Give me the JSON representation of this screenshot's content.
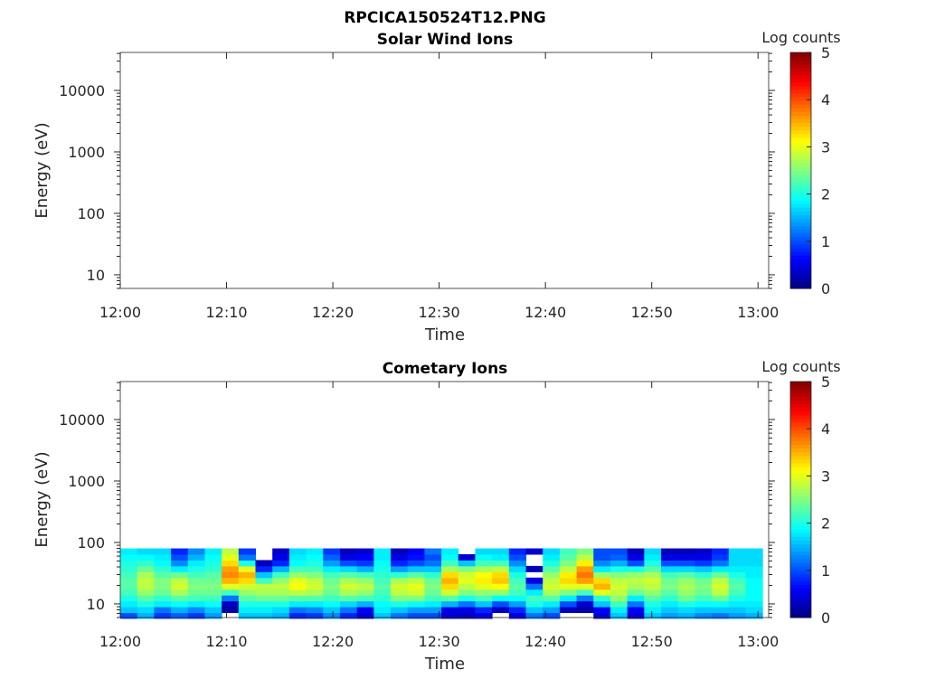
{
  "figure_title": "RPCICA150524T12.PNG",
  "chart_data": [
    {
      "type": "heatmap",
      "title": "Solar Wind Ions",
      "xlabel": "Time",
      "ylabel": "Energy (eV)",
      "yscale": "log",
      "ylim": [
        6,
        41500
      ],
      "xlim_minutes": [
        0,
        61
      ],
      "x_tick_labels": [
        "12:00",
        "12:10",
        "12:20",
        "12:30",
        "12:40",
        "12:50",
        "13:00"
      ],
      "y_ticks": [
        10,
        100,
        1000,
        10000
      ],
      "y_tick_labels": [
        "10",
        "100",
        "1000",
        "10000"
      ],
      "colorbar": {
        "label": "Log counts",
        "range": [
          0,
          5
        ],
        "ticks": [
          "0",
          "1",
          "2",
          "3",
          "4",
          "5"
        ],
        "colormap": "jet"
      },
      "data": []
    },
    {
      "type": "heatmap",
      "title": "Cometary Ions",
      "xlabel": "Time",
      "ylabel": "Energy (eV)",
      "yscale": "log",
      "ylim": [
        6,
        41500
      ],
      "xlim_minutes": [
        0,
        61
      ],
      "x_tick_labels": [
        "12:00",
        "12:10",
        "12:20",
        "12:30",
        "12:40",
        "12:50",
        "13:00"
      ],
      "y_ticks": [
        10,
        100,
        1000,
        10000
      ],
      "y_tick_labels": [
        "10",
        "100",
        "1000",
        "10000"
      ],
      "colorbar": {
        "label": "Log counts",
        "range": [
          0,
          5
        ],
        "ticks": [
          "0",
          "1",
          "2",
          "3",
          "4",
          "5"
        ],
        "colormap": "jet"
      },
      "energy_range_eV": [
        5.8,
        80
      ],
      "time_step_minutes": 1.59,
      "data": [
        [
          1.0,
          1.6,
          1.8,
          2.0,
          2.2,
          2.3,
          2.3,
          2.2,
          2.1,
          2.0,
          1.9,
          1.8
        ],
        [
          1.5,
          1.7,
          2.0,
          2.3,
          2.6,
          2.8,
          2.8,
          2.7,
          2.4,
          2.1,
          1.9,
          1.7
        ],
        [
          0.9,
          1.2,
          1.8,
          2.1,
          2.4,
          2.5,
          2.5,
          2.3,
          2.1,
          1.9,
          1.8,
          1.7
        ],
        [
          1.1,
          1.5,
          1.9,
          2.3,
          2.7,
          2.9,
          2.8,
          2.4,
          1.8,
          1.3,
          1.0,
          0.8
        ],
        [
          0.9,
          1.3,
          1.8,
          2.2,
          2.4,
          2.5,
          2.4,
          2.2,
          2.0,
          1.8,
          1.5,
          1.3
        ],
        [
          1.4,
          1.6,
          1.9,
          2.2,
          2.4,
          2.5,
          2.4,
          2.3,
          2.1,
          2.0,
          1.9,
          1.8
        ],
        [
          null,
          0.2,
          0.3,
          1.2,
          2.2,
          3.0,
          3.5,
          3.7,
          3.6,
          3.3,
          3.0,
          2.8
        ],
        [
          1.6,
          1.8,
          2.0,
          2.3,
          2.6,
          2.9,
          3.3,
          3.5,
          3.0,
          2.0,
          1.2,
          0.9
        ],
        [
          1.6,
          1.8,
          2.0,
          2.4,
          2.7,
          2.8,
          2.2,
          1.6,
          0.8,
          0.3,
          null,
          null
        ],
        [
          1.5,
          1.7,
          2.0,
          2.4,
          2.7,
          2.8,
          2.6,
          2.2,
          1.5,
          0.8,
          0.5,
          0.4
        ],
        [
          0.8,
          1.2,
          1.8,
          2.3,
          2.8,
          3.1,
          3.0,
          2.6,
          2.2,
          1.9,
          1.8,
          1.7
        ],
        [
          0.9,
          1.3,
          1.8,
          2.3,
          2.7,
          2.9,
          2.8,
          2.5,
          2.2,
          2.0,
          1.9,
          1.8
        ],
        [
          1.3,
          1.6,
          1.9,
          2.2,
          2.4,
          2.5,
          2.4,
          2.2,
          1.8,
          1.4,
          1.1,
          0.9
        ],
        [
          0.8,
          1.2,
          1.7,
          2.3,
          2.7,
          2.9,
          2.7,
          2.3,
          1.7,
          1.0,
          0.5,
          0.3
        ],
        [
          0.4,
          0.6,
          1.5,
          2.2,
          2.6,
          2.8,
          2.6,
          2.2,
          1.5,
          0.9,
          0.6,
          0.4
        ],
        [
          1.6,
          1.8,
          1.9,
          2.1,
          2.2,
          2.3,
          2.2,
          2.1,
          2.0,
          1.9,
          1.8,
          1.8
        ],
        [
          1.2,
          1.6,
          2.0,
          2.5,
          2.8,
          2.9,
          2.7,
          2.1,
          1.4,
          0.8,
          0.5,
          0.3
        ],
        [
          1.0,
          1.4,
          1.9,
          2.5,
          2.9,
          3.0,
          2.8,
          2.3,
          1.6,
          1.0,
          0.7,
          0.6
        ],
        [
          1.0,
          1.4,
          1.8,
          2.2,
          2.4,
          2.5,
          2.4,
          2.1,
          1.6,
          1.2,
          1.0,
          1.2
        ],
        [
          0.4,
          0.5,
          1.5,
          2.3,
          2.9,
          3.3,
          3.5,
          3.3,
          2.7,
          2.2,
          1.9,
          1.8
        ],
        [
          0.3,
          0.5,
          1.2,
          2.0,
          2.5,
          2.8,
          3.0,
          2.9,
          2.5,
          1.6,
          0.4,
          null
        ],
        [
          0.5,
          0.8,
          1.6,
          2.2,
          2.6,
          3.0,
          3.2,
          3.1,
          2.7,
          2.2,
          1.9,
          1.7
        ],
        [
          null,
          0.3,
          1.0,
          1.9,
          2.6,
          3.1,
          3.4,
          3.3,
          2.8,
          2.2,
          1.8,
          1.7
        ],
        [
          0.5,
          0.8,
          1.4,
          1.9,
          2.2,
          2.3,
          2.2,
          2.0,
          1.7,
          1.3,
          1.0,
          0.8
        ],
        [
          1.2,
          1.6,
          2.0,
          2.2,
          1.8,
          1.2,
          0.5,
          null,
          0.3,
          null,
          null,
          0.4
        ],
        [
          1.0,
          1.4,
          1.8,
          2.3,
          2.7,
          2.9,
          2.8,
          2.6,
          2.3,
          2.0,
          1.8,
          1.7
        ],
        [
          null,
          0.3,
          1.0,
          1.8,
          2.5,
          3.0,
          3.3,
          3.2,
          2.8,
          2.5,
          2.3,
          2.2
        ],
        [
          null,
          0.2,
          0.4,
          1.2,
          2.2,
          3.0,
          3.6,
          3.8,
          3.6,
          3.2,
          2.8,
          2.5
        ],
        [
          0.4,
          0.6,
          1.6,
          2.1,
          3.0,
          3.5,
          3.3,
          2.6,
          1.8,
          1.3,
          1.0,
          1.0
        ],
        [
          1.6,
          1.8,
          2.2,
          2.6,
          2.8,
          2.9,
          2.8,
          2.5,
          2.0,
          1.5,
          1.1,
          1.0
        ],
        [
          0.4,
          0.6,
          1.2,
          1.8,
          2.4,
          2.7,
          2.8,
          2.6,
          2.0,
          1.0,
          0.5,
          0.3
        ],
        [
          1.6,
          1.8,
          2.0,
          2.3,
          2.6,
          2.8,
          2.9,
          2.7,
          2.3,
          2.0,
          1.8,
          1.7
        ],
        [
          1.4,
          1.6,
          1.8,
          2.1,
          2.3,
          2.5,
          2.4,
          2.2,
          1.7,
          1.0,
          0.5,
          0.3
        ],
        [
          1.5,
          1.7,
          2.0,
          2.4,
          2.6,
          2.7,
          2.6,
          2.3,
          1.7,
          1.0,
          0.5,
          0.3
        ],
        [
          1.3,
          1.6,
          1.9,
          2.2,
          2.4,
          2.5,
          2.4,
          2.1,
          1.6,
          0.9,
          0.5,
          0.4
        ],
        [
          1.2,
          1.6,
          1.9,
          2.4,
          2.8,
          2.9,
          2.8,
          2.4,
          1.8,
          1.2,
          0.9,
          0.8
        ],
        [
          1.4,
          1.6,
          1.8,
          2.0,
          2.2,
          2.3,
          2.2,
          2.0,
          1.8,
          1.7,
          1.7,
          1.7
        ],
        [
          1.5,
          1.7,
          1.8,
          1.9,
          1.9,
          1.9,
          1.9,
          1.8,
          1.8,
          1.7,
          1.7,
          1.7
        ]
      ]
    }
  ]
}
